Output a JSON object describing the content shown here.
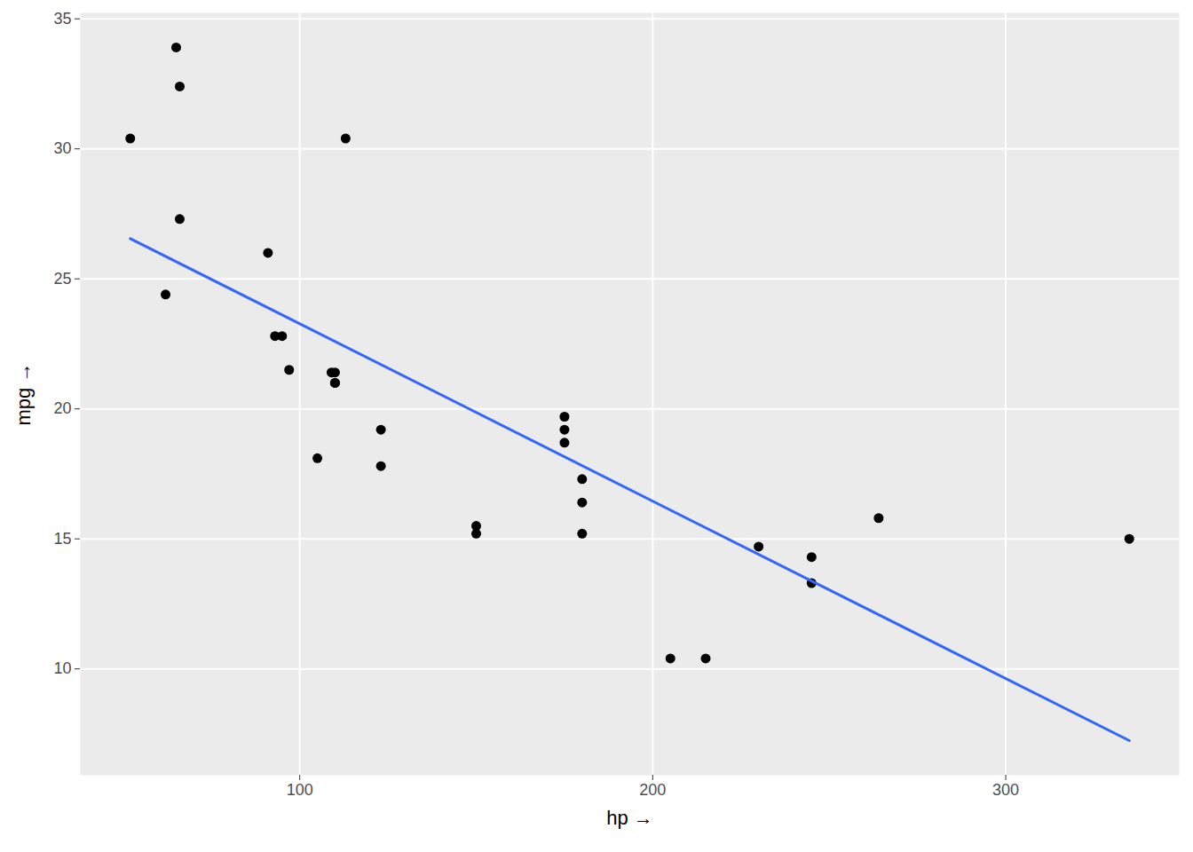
{
  "chart_data": {
    "type": "scatter",
    "x_label": "hp",
    "y_label": "mpg",
    "xlim": [
      37.85,
      349.15
    ],
    "ylim": [
      5.91,
      35.23
    ],
    "xticks": [
      100,
      200,
      300
    ],
    "yticks": [
      10,
      15,
      20,
      25,
      30,
      35
    ],
    "grid": true,
    "series": [
      {
        "type": "scatter",
        "color": "#000000",
        "marker": "circle",
        "x": [
          110,
          110,
          93,
          110,
          175,
          105,
          245,
          62,
          95,
          123,
          123,
          180,
          180,
          180,
          205,
          215,
          230,
          66,
          52,
          65,
          97,
          150,
          150,
          245,
          175,
          66,
          91,
          113,
          264,
          175,
          335,
          109
        ],
        "values": [
          21.0,
          21.0,
          22.8,
          21.4,
          18.7,
          18.1,
          14.3,
          24.4,
          22.8,
          19.2,
          17.8,
          16.4,
          17.3,
          15.2,
          10.4,
          10.4,
          14.7,
          32.4,
          30.4,
          33.9,
          21.5,
          15.5,
          15.2,
          13.3,
          19.2,
          27.3,
          26.0,
          30.4,
          15.8,
          19.7,
          15.0,
          21.4
        ]
      },
      {
        "type": "line",
        "color": "#3366ff",
        "line_style": "solid",
        "x": [
          52,
          335
        ],
        "values": [
          26.55,
          7.24
        ]
      }
    ]
  }
}
